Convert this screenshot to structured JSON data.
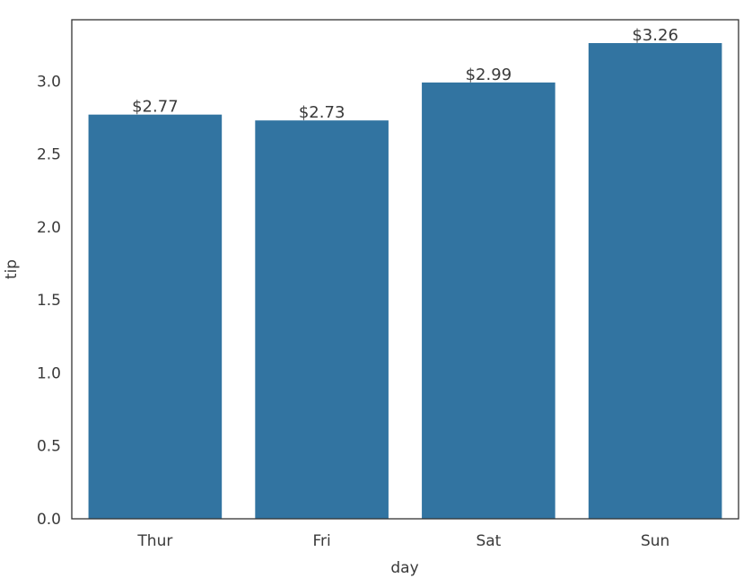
{
  "chart_data": {
    "type": "bar",
    "title": "",
    "xlabel": "day",
    "ylabel": "tip",
    "categories": [
      "Thur",
      "Fri",
      "Sat",
      "Sun"
    ],
    "values": [
      2.77,
      2.73,
      2.99,
      3.26
    ],
    "bar_labels": [
      "$2.77",
      "$2.73",
      "$2.99",
      "$3.26"
    ],
    "ylim": [
      0,
      3.42
    ],
    "yticks": [
      0.0,
      0.5,
      1.0,
      1.5,
      2.0,
      2.5,
      3.0
    ],
    "ytick_labels": [
      "0.0",
      "0.5",
      "1.0",
      "1.5",
      "2.0",
      "2.5",
      "3.0"
    ],
    "grid": false,
    "colors": {
      "bar": "#3274a1",
      "text": "#3a3a3a",
      "axes": "#333333"
    }
  }
}
